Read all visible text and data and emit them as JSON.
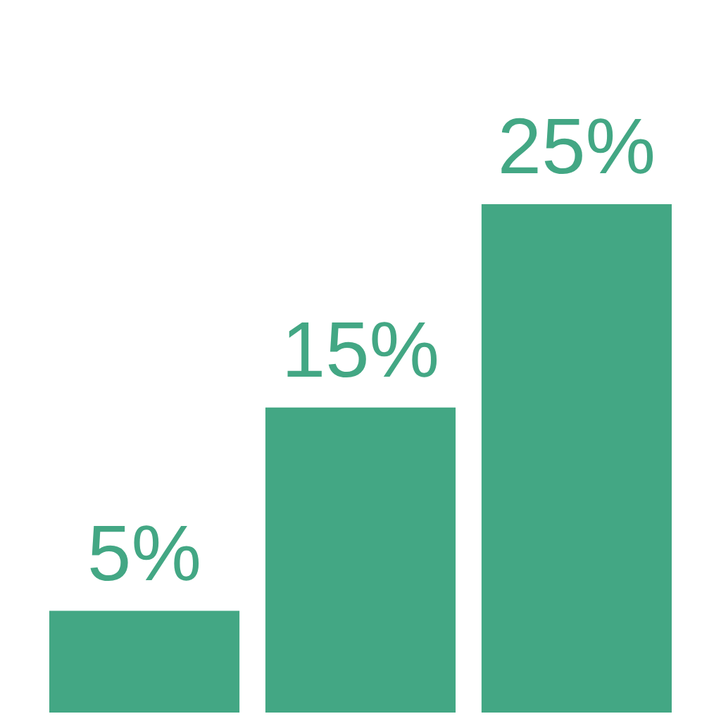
{
  "chart_data": {
    "type": "bar",
    "categories": [
      null,
      null,
      null
    ],
    "values": [
      5,
      15,
      25
    ],
    "value_labels": [
      "5%",
      "15%",
      "25%"
    ],
    "color": "#43a784"
  }
}
